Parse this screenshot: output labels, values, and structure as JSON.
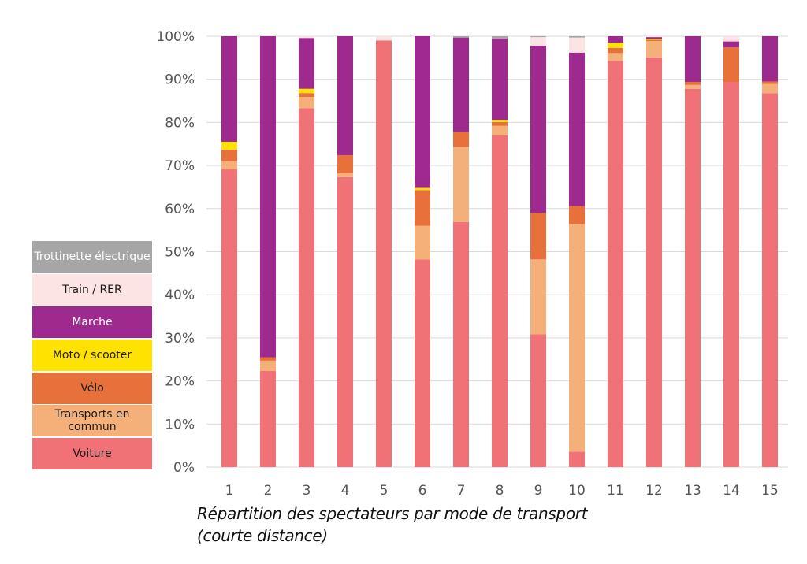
{
  "chart_data": {
    "type": "bar",
    "stacked": true,
    "normalized": true,
    "title": "",
    "caption_line1": "Répartition des spectateurs par mode de transport",
    "caption_line2": "(courte distance)",
    "xlabel": "",
    "ylabel": "",
    "ylim": [
      0,
      100
    ],
    "yticks": [
      0,
      10,
      20,
      30,
      40,
      50,
      60,
      70,
      80,
      90,
      100
    ],
    "ytick_labels": [
      "0%",
      "10%",
      "20%",
      "30%",
      "40%",
      "50%",
      "60%",
      "70%",
      "80%",
      "90%",
      "100%"
    ],
    "grid": true,
    "legend_position": "left",
    "categories": [
      "1",
      "2",
      "3",
      "4",
      "5",
      "6",
      "7",
      "8",
      "9",
      "10",
      "11",
      "12",
      "13",
      "14",
      "15"
    ],
    "series": [
      {
        "name": "Voiture",
        "color": "#f07276",
        "values": [
          69.1,
          22.3,
          83.3,
          67.3,
          99.0,
          48.2,
          56.9,
          77.0,
          30.8,
          3.6,
          94.3,
          95.1,
          87.8,
          89.4,
          86.8
        ]
      },
      {
        "name": "Transports en commun",
        "color": "#f5b07a",
        "values": [
          1.8,
          2.4,
          2.6,
          0.9,
          0,
          7.8,
          17.4,
          2.2,
          17.4,
          52.8,
          1.8,
          3.8,
          0.9,
          0,
          2.1
        ]
      },
      {
        "name": "Vélo",
        "color": "#e8703a",
        "values": [
          2.8,
          0.8,
          0.9,
          4.2,
          0,
          8.3,
          3.5,
          0.9,
          10.8,
          4.2,
          1.2,
          0.3,
          0.7,
          8.0,
          0.6
        ]
      },
      {
        "name": "Moto / scooter",
        "color": "#ffe200",
        "values": [
          1.8,
          0,
          1.0,
          0,
          0,
          0.5,
          0,
          0.5,
          0,
          0,
          1.2,
          0.2,
          0,
          0,
          0
        ]
      },
      {
        "name": "Marche",
        "color": "#9e2a8f",
        "values": [
          24.5,
          74.5,
          11.8,
          27.6,
          0,
          35.2,
          21.9,
          18.9,
          38.8,
          35.6,
          1.5,
          0.4,
          10.6,
          1.4,
          10.5
        ]
      },
      {
        "name": "Train / RER",
        "color": "#fce4e4",
        "values": [
          0,
          0,
          0.4,
          0,
          1.0,
          0,
          0,
          0,
          2.0,
          3.5,
          0,
          0.2,
          0,
          1.2,
          0
        ]
      },
      {
        "name": "Trottinette électrique",
        "color": "#a6a6a6",
        "values": [
          0,
          0,
          0,
          0,
          0,
          0,
          0.3,
          0.5,
          0.2,
          0.3,
          0,
          0,
          0,
          0,
          0
        ]
      }
    ]
  },
  "legend": {
    "items": [
      {
        "label": "Trottinette électrique",
        "color": "#a6a6a6",
        "text_light": true
      },
      {
        "label": "Train / RER",
        "color": "#fce4e4",
        "text_light": false
      },
      {
        "label": "Marche",
        "color": "#9e2a8f",
        "text_light": true
      },
      {
        "label": "Moto / scooter",
        "color": "#ffe200",
        "text_light": false
      },
      {
        "label": "Vélo",
        "color": "#e8703a",
        "text_light": false
      },
      {
        "label": "Transports en commun",
        "color": "#f5b07a",
        "text_light": false
      },
      {
        "label": "Voiture",
        "color": "#f07276",
        "text_light": false
      }
    ]
  }
}
